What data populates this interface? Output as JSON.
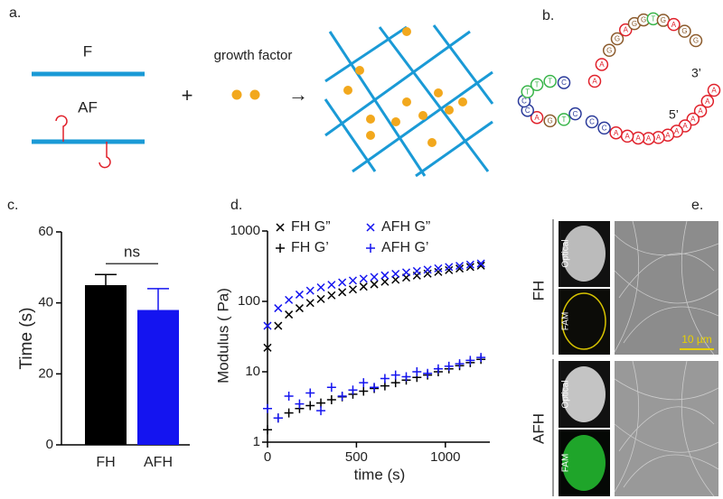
{
  "panel_labels": [
    "a.",
    "b.",
    "c.",
    "d.",
    "e."
  ],
  "diagram_a": {
    "strand_f": "F",
    "strand_af": "AF",
    "plus": "+",
    "growth_factor": "growth factor",
    "arrow": "→"
  },
  "sequence_b": {
    "three_prime": "3’",
    "five_prime": "5’",
    "nucleotides": [
      "A",
      "A",
      "A",
      "A",
      "A",
      "A",
      "A",
      "A",
      "A",
      "A",
      "A",
      "A",
      "C",
      "C",
      "C",
      "T",
      "G",
      "A",
      "C",
      "C",
      "T",
      "T",
      "T",
      "C",
      "A",
      "A",
      "G",
      "G",
      "A",
      "G",
      "G",
      "T",
      "G",
      "A",
      "G",
      "G"
    ]
  },
  "images_e": {
    "groups": [
      "FH",
      "AFH"
    ],
    "channels": [
      "Optical",
      "FAM",
      "Optical",
      "FAM"
    ],
    "scale_bar": "10 µm"
  },
  "chart_data": [
    {
      "type": "bar",
      "ylabel": "Time (s)",
      "categories": [
        "FH",
        "AFH"
      ],
      "values": [
        45,
        38
      ],
      "errors": [
        3,
        6
      ],
      "colors": [
        "#000000",
        "#1414f0"
      ],
      "annotation": "ns",
      "ylim": [
        0,
        60
      ],
      "yticks": [
        0,
        20,
        40,
        60
      ]
    },
    {
      "type": "scatter",
      "xlabel": "time (s)",
      "ylabel": "Modulus ( Pa)",
      "log_y": true,
      "x": [
        0,
        60,
        120,
        180,
        240,
        300,
        360,
        420,
        480,
        540,
        600,
        660,
        720,
        780,
        840,
        900,
        960,
        1020,
        1080,
        1140,
        1200
      ],
      "xlim": [
        0,
        1250
      ],
      "xticks": [
        0,
        500,
        1000
      ],
      "ylim": [
        1,
        1000
      ],
      "yticks": [
        1,
        10,
        100,
        1000
      ],
      "series": [
        {
          "name": "FH G”",
          "color": "#000000",
          "marker": "x",
          "values": [
            22,
            45,
            65,
            80,
            95,
            108,
            122,
            135,
            148,
            162,
            175,
            190,
            203,
            218,
            233,
            248,
            262,
            278,
            293,
            308,
            322
          ]
        },
        {
          "name": "AFH G”",
          "color": "#1414f0",
          "marker": "x",
          "values": [
            45,
            80,
            105,
            125,
            142,
            158,
            172,
            186,
            198,
            210,
            222,
            234,
            246,
            258,
            270,
            282,
            295,
            308,
            320,
            333,
            345
          ]
        },
        {
          "name": "FH G’",
          "color": "#000000",
          "marker": "+",
          "values": [
            1.5,
            2.2,
            2.6,
            3,
            3.3,
            3.6,
            4,
            4.4,
            4.8,
            5.3,
            5.8,
            6.3,
            7,
            7.6,
            8.3,
            9,
            10,
            11,
            12.2,
            13.5,
            15
          ]
        },
        {
          "name": "AFH G’",
          "color": "#1414f0",
          "marker": "+",
          "values": [
            3,
            2.2,
            4.5,
            3.5,
            5,
            2.8,
            6,
            4.5,
            5.5,
            7,
            6,
            8,
            9,
            8.5,
            10,
            9.5,
            11,
            12,
            13,
            14.5,
            16
          ]
        }
      ]
    }
  ]
}
